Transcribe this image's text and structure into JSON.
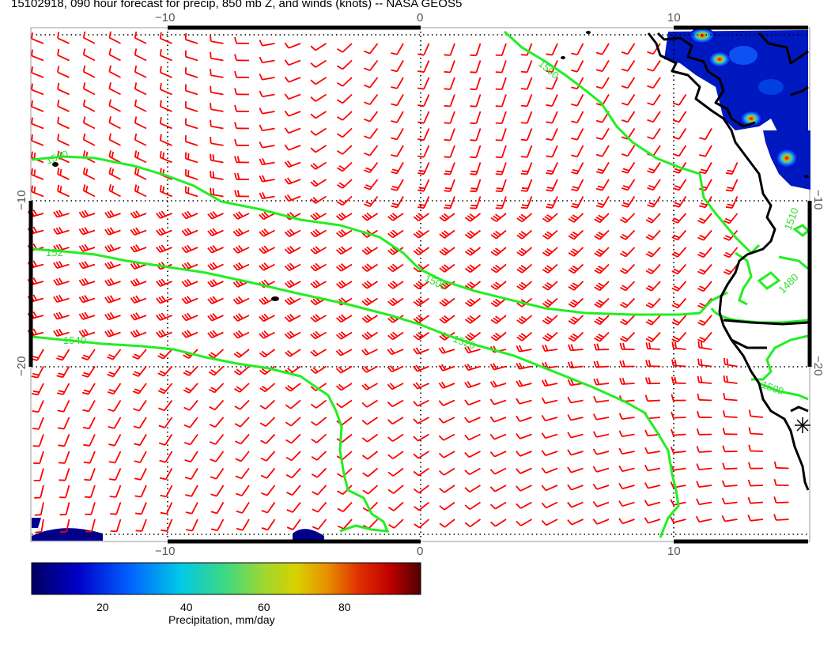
{
  "title": "15102918, 090 hour forecast for precip, 850 mb Z, and winds (knots) -- NASA GEOS5",
  "map": {
    "x_ticks": [
      "−10",
      "0",
      "10"
    ],
    "y_ticks": [
      "−10",
      "−20"
    ],
    "contour_labels": [
      "1500",
      "1500",
      "152",
      "1500",
      "1540",
      "1520",
      "1500",
      "1510",
      "1480",
      "1500"
    ],
    "colors": {
      "coastline": "#000000",
      "contour": "#22ee22",
      "wind_barb": "#ff0000",
      "grid": "#000000"
    }
  },
  "colorbar": {
    "ticks": [
      "20",
      "40",
      "60",
      "80"
    ],
    "label": "Precipitation, mm/day",
    "range": [
      0,
      100
    ]
  }
}
